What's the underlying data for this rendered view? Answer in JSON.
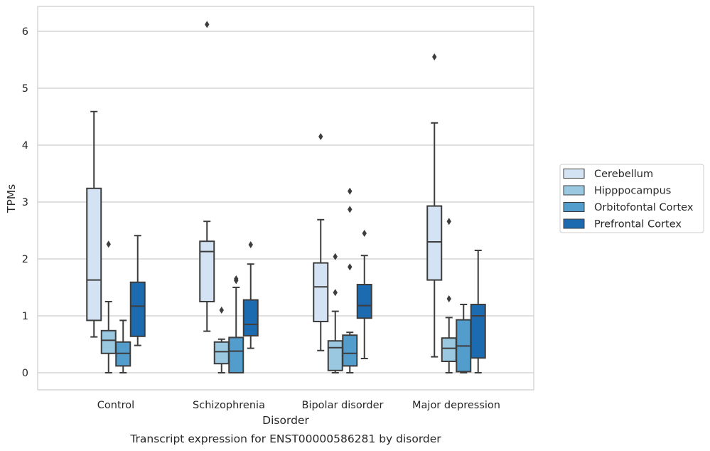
{
  "chart_data": {
    "type": "boxplot",
    "title": "",
    "caption": "Transcript expression for ENST00000586281 by disorder",
    "xlabel": "Disorder",
    "ylabel": "TPMs",
    "ylim": [
      -0.3,
      6.45
    ],
    "yticks": [
      0,
      1,
      2,
      3,
      4,
      5,
      6
    ],
    "grid": "horizontal",
    "legend_position": "right",
    "categories": [
      "Control",
      "Schizophrenia",
      "Bipolar disorder",
      "Major depression"
    ],
    "series": [
      {
        "name": "Cerebellum",
        "color": "#d3e3f3",
        "boxes": [
          {
            "whislo": 0.63,
            "q1": 0.92,
            "med": 1.63,
            "q3": 3.24,
            "whishi": 4.59,
            "fliers": []
          },
          {
            "whislo": 0.73,
            "q1": 1.25,
            "med": 2.13,
            "q3": 2.31,
            "whishi": 2.66,
            "fliers": [
              6.12
            ]
          },
          {
            "whislo": 0.39,
            "q1": 0.9,
            "med": 1.51,
            "q3": 1.93,
            "whishi": 2.69,
            "fliers": [
              4.15
            ]
          },
          {
            "whislo": 0.28,
            "q1": 1.63,
            "med": 2.3,
            "q3": 2.93,
            "whishi": 4.39,
            "fliers": [
              5.55
            ]
          }
        ]
      },
      {
        "name": "Hipppocampus",
        "color": "#9ac8e0",
        "boxes": [
          {
            "whislo": 0.0,
            "q1": 0.34,
            "med": 0.57,
            "q3": 0.74,
            "whishi": 1.25,
            "fliers": [
              2.26
            ]
          },
          {
            "whislo": 0.0,
            "q1": 0.16,
            "med": 0.37,
            "q3": 0.54,
            "whishi": 0.59,
            "fliers": [
              1.1
            ]
          },
          {
            "whislo": 0.0,
            "q1": 0.04,
            "med": 0.44,
            "q3": 0.56,
            "whishi": 1.08,
            "fliers": [
              1.41,
              2.04
            ]
          },
          {
            "whislo": 0.0,
            "q1": 0.2,
            "med": 0.43,
            "q3": 0.61,
            "whishi": 0.97,
            "fliers": [
              1.3,
              2.66
            ]
          }
        ]
      },
      {
        "name": "Orbitofontal Cortex",
        "color": "#529dcc",
        "boxes": [
          {
            "whislo": 0.0,
            "q1": 0.12,
            "med": 0.34,
            "q3": 0.54,
            "whishi": 0.92,
            "fliers": []
          },
          {
            "whislo": 0.0,
            "q1": 0.0,
            "med": 0.38,
            "q3": 0.62,
            "whishi": 1.5,
            "fliers": [
              1.62,
              1.65
            ]
          },
          {
            "whislo": 0.0,
            "q1": 0.12,
            "med": 0.34,
            "q3": 0.66,
            "whishi": 0.71,
            "fliers": [
              1.86,
              2.87,
              3.19
            ]
          },
          {
            "whislo": 0.0,
            "q1": 0.02,
            "med": 0.47,
            "q3": 0.93,
            "whishi": 1.2,
            "fliers": []
          }
        ]
      },
      {
        "name": "Prefrontal Cortex",
        "color": "#1c6aaf",
        "boxes": [
          {
            "whislo": 0.48,
            "q1": 0.64,
            "med": 1.17,
            "q3": 1.59,
            "whishi": 2.41,
            "fliers": []
          },
          {
            "whislo": 0.43,
            "q1": 0.65,
            "med": 0.85,
            "q3": 1.28,
            "whishi": 1.91,
            "fliers": [
              2.25
            ]
          },
          {
            "whislo": 0.25,
            "q1": 0.96,
            "med": 1.18,
            "q3": 1.55,
            "whishi": 2.06,
            "fliers": [
              2.45
            ]
          },
          {
            "whislo": 0.0,
            "q1": 0.26,
            "med": 1.0,
            "q3": 1.2,
            "whishi": 2.15,
            "fliers": []
          }
        ]
      }
    ]
  }
}
